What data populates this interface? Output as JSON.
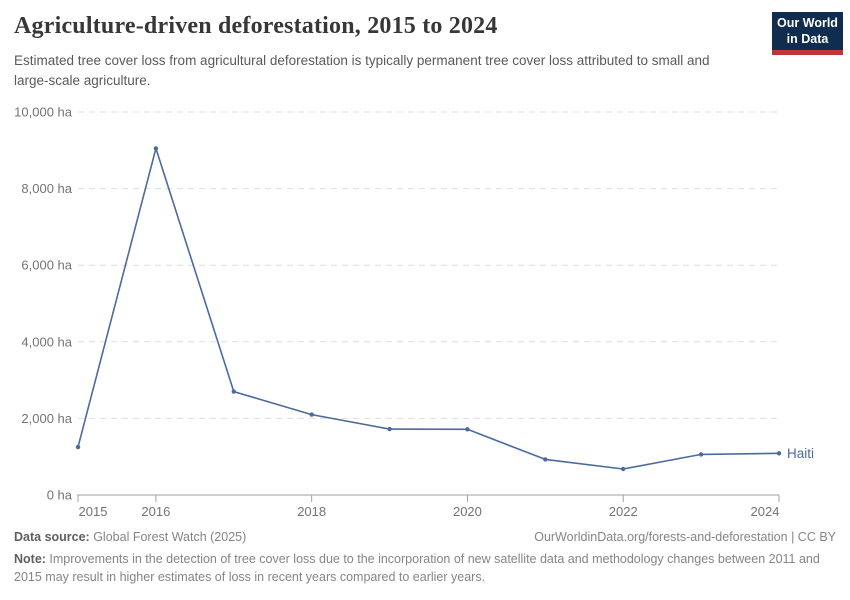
{
  "header": {
    "title": "Agriculture-driven deforestation, 2015 to 2024",
    "subtitle": "Estimated tree cover loss from agricultural deforestation is typically permanent tree cover loss attributed to small and large-scale agriculture.",
    "logo": {
      "line1": "Our World",
      "line2": "in Data"
    }
  },
  "chart_data": {
    "type": "line",
    "title": "Agriculture-driven deforestation, 2015 to 2024",
    "x": [
      2015,
      2016,
      2017,
      2018,
      2019,
      2020,
      2021,
      2022,
      2023,
      2024
    ],
    "series": [
      {
        "name": "Haiti",
        "color": "#4c6a9c",
        "values": [
          1250,
          9050,
          2700,
          2100,
          1720,
          1715,
          930,
          680,
          1060,
          1090
        ]
      }
    ],
    "unit": "ha",
    "ylabel": "",
    "xlabel": "",
    "ylim": [
      0,
      10000
    ],
    "yticks": [
      0,
      2000,
      4000,
      6000,
      8000,
      10000
    ],
    "ytick_labels": [
      "0 ha",
      "2,000 ha",
      "4,000 ha",
      "6,000 ha",
      "8,000 ha",
      "10,000 ha"
    ],
    "xticks": [
      2015,
      2016,
      2018,
      2020,
      2022,
      2024
    ],
    "grid": "horizontal-dashed",
    "legend": "line-end-label"
  },
  "footer": {
    "datasource_label": "Data source:",
    "datasource_value": " Global Forest Watch (2025)",
    "link": "OurWorldinData.org/forests-and-deforestation",
    "license": " | CC BY",
    "note_label": "Note:",
    "note_text": " Improvements in the detection of tree cover loss due to the incorporation of new satellite data and methodology changes between 2011 and 2015 may result in higher estimates of loss in recent years compared to earlier years."
  },
  "colors": {
    "accent_blue": "#4c6a9c",
    "logo_bg": "#102d50",
    "logo_accent": "#c0353b",
    "gridline": "#dddddd",
    "axis": "#a0a0a0",
    "title_text": "#373737",
    "subtitle_text": "#5a5a5a",
    "axis_text": "#737373",
    "footer_text": "#858585"
  }
}
